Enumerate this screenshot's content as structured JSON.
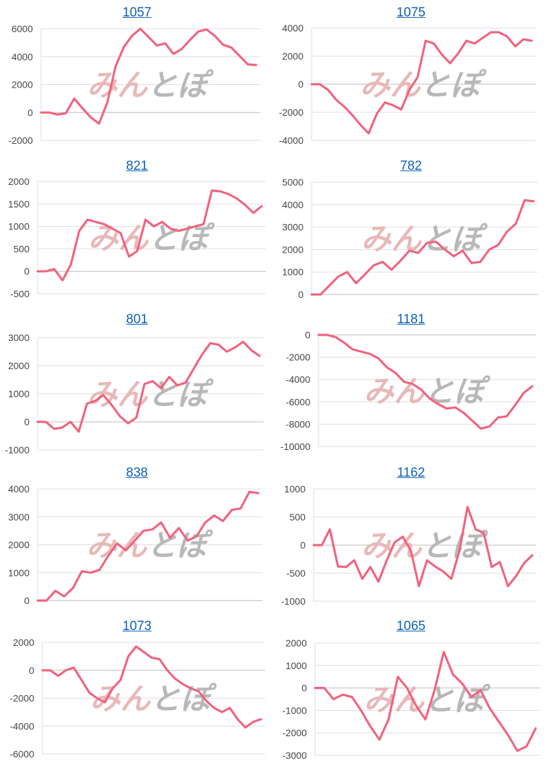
{
  "watermark": {
    "part1": "みん",
    "part2": "とぽ"
  },
  "colors": {
    "line": "#f0637f",
    "grid": "#dddddd",
    "axis": "#bbbbbb",
    "title": "#0b5fb8"
  },
  "chart_data": [
    {
      "type": "line",
      "title": "1057",
      "ylim": [
        -2000,
        6000
      ],
      "yticks": [
        "6000",
        "4000",
        "2000",
        "0",
        "-2000"
      ],
      "values": [
        0,
        0,
        -150,
        -50,
        1000,
        300,
        -350,
        -800,
        700,
        3300,
        4700,
        5500,
        6000,
        5400,
        4800,
        4950,
        4200,
        4550,
        5200,
        5800,
        5950,
        5500,
        4850,
        4650,
        4050,
        3450,
        3400
      ]
    },
    {
      "type": "line",
      "title": "1075",
      "ylim": [
        -4000,
        4000
      ],
      "yticks": [
        "4000",
        "2000",
        "0",
        "-2000",
        "-4000"
      ],
      "values": [
        0,
        0,
        -400,
        -1100,
        -1600,
        -2200,
        -2900,
        -3500,
        -2100,
        -1300,
        -1500,
        -1800,
        -400,
        500,
        3100,
        2900,
        2100,
        1500,
        2200,
        3100,
        2900,
        3300,
        3700,
        3700,
        3400,
        2700,
        3200,
        3100
      ]
    },
    {
      "type": "line",
      "title": "821",
      "ylim": [
        -500,
        2000
      ],
      "yticks": [
        "2000",
        "1500",
        "1000",
        "500",
        "0",
        "-500"
      ],
      "values": [
        0,
        0,
        50,
        -200,
        150,
        900,
        1150,
        1100,
        1050,
        950,
        850,
        330,
        450,
        1150,
        1000,
        1100,
        950,
        900,
        950,
        1000,
        1050,
        1800,
        1780,
        1720,
        1620,
        1480,
        1300,
        1450
      ]
    },
    {
      "type": "line",
      "title": "782",
      "ylim": [
        0,
        5000
      ],
      "yticks": [
        "5000",
        "4000",
        "3000",
        "2000",
        "1000",
        "0"
      ],
      "values": [
        0,
        0,
        400,
        800,
        1000,
        500,
        900,
        1300,
        1450,
        1100,
        1500,
        1950,
        1850,
        2300,
        2350,
        2000,
        1700,
        1950,
        1400,
        1450,
        2000,
        2200,
        2800,
        3150,
        4200,
        4150
      ]
    },
    {
      "type": "line",
      "title": "801",
      "ylim": [
        -1000,
        3000
      ],
      "yticks": [
        "3000",
        "2000",
        "1000",
        "0",
        "-1000"
      ],
      "values": [
        0,
        0,
        -250,
        -200,
        0,
        -350,
        650,
        750,
        950,
        600,
        200,
        -50,
        150,
        1350,
        1450,
        1200,
        1600,
        1300,
        1400,
        1900,
        2400,
        2800,
        2750,
        2500,
        2650,
        2850,
        2550,
        2350
      ]
    },
    {
      "type": "line",
      "title": "1181",
      "ylim": [
        -10000,
        0
      ],
      "yticks": [
        "0",
        "-2000",
        "-4000",
        "-6000",
        "-8000",
        "-10000"
      ],
      "values": [
        0,
        0,
        -200,
        -700,
        -1300,
        -1500,
        -1700,
        -2100,
        -2900,
        -3400,
        -4200,
        -4400,
        -4900,
        -5700,
        -6200,
        -6600,
        -6500,
        -7000,
        -7700,
        -8400,
        -8200,
        -7400,
        -7300,
        -6300,
        -5200,
        -4600
      ]
    },
    {
      "type": "line",
      "title": "838",
      "ylim": [
        0,
        4000
      ],
      "yticks": [
        "4000",
        "3000",
        "2000",
        "1000",
        "0"
      ],
      "values": [
        0,
        0,
        350,
        150,
        450,
        1050,
        1000,
        1100,
        1600,
        2050,
        1800,
        2150,
        2500,
        2550,
        2800,
        2250,
        2600,
        2150,
        2300,
        2800,
        3050,
        2850,
        3250,
        3300,
        3900,
        3850
      ]
    },
    {
      "type": "line",
      "title": "1162",
      "ylim": [
        -1000,
        1000
      ],
      "yticks": [
        "1000",
        "500",
        "0",
        "-500",
        "-1000"
      ],
      "values": [
        0,
        0,
        280,
        -380,
        -390,
        -270,
        -600,
        -390,
        -650,
        -280,
        50,
        150,
        -100,
        -730,
        -270,
        -380,
        -470,
        -600,
        -100,
        680,
        280,
        220,
        -390,
        -300,
        -730,
        -550,
        -320,
        -180
      ]
    },
    {
      "type": "line",
      "title": "1073",
      "ylim": [
        -6000,
        2000
      ],
      "yticks": [
        "2000",
        "0",
        "-2000",
        "-4000",
        "-6000"
      ],
      "values": [
        0,
        0,
        -400,
        0,
        200,
        -700,
        -1600,
        -2000,
        -2300,
        -1300,
        -700,
        1000,
        1700,
        1300,
        900,
        800,
        0,
        -600,
        -1000,
        -1300,
        -1500,
        -2200,
        -2700,
        -3000,
        -2700,
        -3500,
        -4100,
        -3700,
        -3500
      ]
    },
    {
      "type": "line",
      "title": "1065",
      "ylim": [
        -3000,
        2000
      ],
      "yticks": [
        "2000",
        "1000",
        "0",
        "-1000",
        "-2000",
        "-3000"
      ],
      "values": [
        0,
        0,
        -500,
        -300,
        -400,
        -1000,
        -1700,
        -2300,
        -1400,
        500,
        0,
        -800,
        -1400,
        -100,
        1600,
        600,
        200,
        -400,
        -100,
        -900,
        -1500,
        -2100,
        -2800,
        -2600,
        -1800
      ]
    }
  ]
}
